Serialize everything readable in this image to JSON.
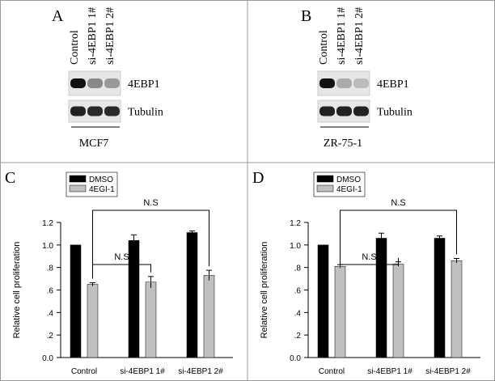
{
  "blots": [
    {
      "label": "A",
      "lanes": [
        "Control",
        "si-4EBP1 1#",
        "si-4EBP1 2#"
      ],
      "bands": [
        "4EBP1",
        "Tubulin"
      ],
      "cell_line": "MCF7"
    },
    {
      "label": "B",
      "lanes": [
        "Control",
        "si-4EBP1 1#",
        "si-4EBP1 2#"
      ],
      "bands": [
        "4EBP1",
        "Tubulin"
      ],
      "cell_line": "ZR-75-1"
    }
  ],
  "chart_data": [
    {
      "type": "bar",
      "panel": "C",
      "ylabel": "Relative cell proliferation",
      "categories": [
        "Control",
        "si-4EBP1 1#",
        "si-4EBP1  2#"
      ],
      "series": [
        {
          "name": "DMSO",
          "color": "#000000",
          "values": [
            1.0,
            1.04,
            1.11
          ],
          "errors": [
            0,
            0.05,
            0.015
          ]
        },
        {
          "name": "4EGI-1",
          "color": "#c0c0c0",
          "values": [
            0.65,
            0.67,
            0.73
          ],
          "errors": [
            0.015,
            0.05,
            0.045
          ]
        }
      ],
      "ylim": [
        0,
        1.2
      ],
      "yticks": [
        {
          "value": 0,
          "label": "0.0"
        },
        {
          "value": 0.2,
          "label": ".2"
        },
        {
          "value": 0.4,
          "label": ".4"
        },
        {
          "value": 0.6,
          "label": ".6"
        },
        {
          "value": 0.8,
          "label": ".8"
        },
        {
          "value": 1,
          "label": "1.0"
        },
        1.2
      ],
      "annotations": [
        "N.S",
        "N.S"
      ]
    },
    {
      "type": "bar",
      "panel": "D",
      "ylabel": "Relative cell proliferation",
      "categories": [
        "Control",
        "si-4EBP1 1#",
        "si-4EBP1  2#"
      ],
      "series": [
        {
          "name": "DMSO",
          "color": "#000000",
          "values": [
            1.0,
            1.06,
            1.06
          ],
          "errors": [
            0,
            0.045,
            0.02
          ]
        },
        {
          "name": "4EGI-1",
          "color": "#c0c0c0",
          "values": [
            0.81,
            0.83,
            0.86
          ],
          "errors": [
            0.015,
            0.02,
            0.02
          ]
        }
      ],
      "ylim": [
        0,
        1.2
      ],
      "yticks": [
        {
          "value": 0,
          "label": "0.0"
        },
        {
          "value": 0.2,
          "label": ".2"
        },
        {
          "value": 0.4,
          "label": ".4"
        },
        {
          "value": 0.6,
          "label": ".6"
        },
        {
          "value": 0.8,
          "label": ".8"
        },
        {
          "value": 1,
          "label": "1.0"
        },
        1.2
      ],
      "annotations": [
        "N.S",
        "N.S"
      ]
    }
  ]
}
